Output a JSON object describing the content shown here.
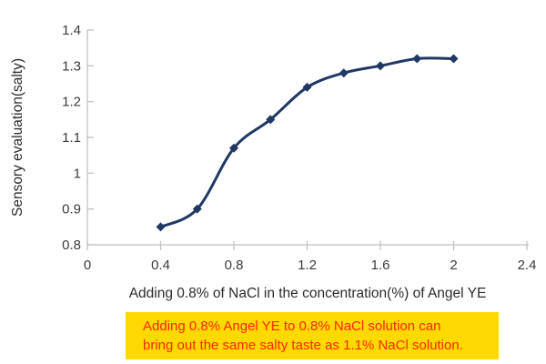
{
  "chart_data": {
    "type": "line",
    "x": [
      0.4,
      0.6,
      0.8,
      1.0,
      1.2,
      1.4,
      1.6,
      1.8,
      2.0
    ],
    "values": [
      0.85,
      0.9,
      1.07,
      1.15,
      1.24,
      1.28,
      1.3,
      1.32,
      1.32
    ],
    "title": "",
    "xlabel": "Adding 0.8% of NaCl in the concentration(%) of Angel YE",
    "ylabel": "Sensory evaluation(salty)",
    "xlim": [
      0,
      2.4
    ],
    "ylim": [
      0.8,
      1.4
    ],
    "x_ticks": [
      "0",
      "0.4",
      "0.8",
      "1.2",
      "1.6",
      "2",
      "2.4"
    ],
    "x_tick_values": [
      0,
      0.4,
      0.8,
      1.2,
      1.6,
      2.0,
      2.4
    ],
    "y_ticks": [
      "0.8",
      "0.9",
      "1",
      "1.1",
      "1.2",
      "1.3",
      "1.4"
    ],
    "y_tick_values": [
      0.8,
      0.9,
      1.0,
      1.1,
      1.2,
      1.3,
      1.4
    ],
    "grid": false,
    "legend": false,
    "marker": "diamond",
    "line_smooth": true
  },
  "colors": {
    "line": "#1F3864",
    "axis": "#BFBFBF",
    "tick_label": "#3B3B3B",
    "callout_bg": "#FFD900",
    "callout_text": "#FF2600",
    "background": "#FFFFFF"
  },
  "callout": {
    "lines": [
      "Adding 0.8% Angel YE to 0.8% NaCl solution can",
      "bring out the same salty taste as 1.1% NaCl solution."
    ]
  }
}
